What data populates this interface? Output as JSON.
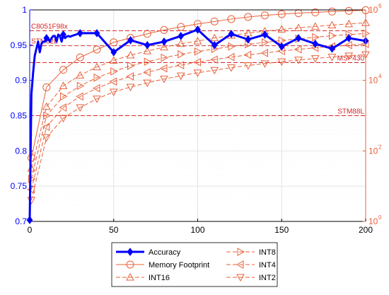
{
  "chart_data": {
    "type": "line",
    "x": [
      0,
      1,
      2,
      3,
      4,
      5,
      6,
      7,
      8,
      9,
      10,
      11,
      12,
      13,
      14,
      15,
      16,
      17,
      18,
      19,
      20,
      21,
      22,
      23,
      24,
      25,
      30,
      40,
      50,
      60,
      70,
      80,
      90,
      100,
      110,
      120,
      130,
      140,
      150,
      160,
      170,
      180,
      190,
      200
    ],
    "xlim": [
      0,
      200
    ],
    "xticks": [
      "0",
      "50",
      "100",
      "150",
      "200"
    ],
    "left_axis": {
      "ylim": [
        0.7,
        1.0
      ],
      "ticks": [
        "0.7",
        "0.75",
        "0.8",
        "0.85",
        "0.9",
        "0.95",
        "1"
      ],
      "color": "#0000ff"
    },
    "right_axis": {
      "scale": "log",
      "ylim": [
        1,
        1000000
      ],
      "ticks": [
        {
          "base": "10",
          "exp": "0"
        },
        {
          "base": "10",
          "exp": "2"
        },
        {
          "base": "10",
          "exp": "4"
        },
        {
          "base": "10",
          "exp": "6"
        }
      ],
      "color": "#e8613a"
    },
    "accuracy": {
      "name": "Accuracy",
      "color": "#0000ff",
      "values": [
        0.702,
        0.88,
        0.91,
        0.935,
        0.945,
        0.955,
        0.94,
        0.952,
        0.955,
        0.955,
        0.96,
        0.96,
        0.955,
        0.96,
        0.963,
        0.963,
        0.955,
        0.965,
        0.963,
        0.955,
        0.965,
        0.96,
        0.962,
        0.963,
        0.962,
        0.963,
        0.967,
        0.967,
        0.94,
        0.957,
        0.95,
        0.955,
        0.963,
        0.972,
        0.95,
        0.966,
        0.958,
        0.965,
        0.948,
        0.96,
        0.952,
        0.945,
        0.96,
        0.956
      ],
      "marked_x": [
        0,
        10,
        20,
        30,
        40,
        50,
        60,
        70,
        80,
        90,
        100,
        110,
        120,
        130,
        140,
        150,
        160,
        170,
        180,
        190,
        200
      ]
    },
    "memory_series": [
      {
        "name": "Memory Footprint",
        "marker": "circle",
        "dash": "solid",
        "x": [
          1,
          10,
          20,
          30,
          40,
          50,
          60,
          70,
          80,
          90,
          100,
          110,
          120,
          130,
          140,
          150,
          160,
          170,
          180,
          190,
          200
        ],
        "values": [
          64,
          6400,
          20000,
          45000,
          75000,
          120000,
          160000,
          210000,
          270000,
          330000,
          400000,
          470000,
          550000,
          630000,
          700000,
          760000,
          810000,
          850000,
          900000,
          940000,
          980000
        ]
      },
      {
        "name": "INT16",
        "marker": "triangle-up",
        "dash": "dashed",
        "x": [
          1,
          10,
          20,
          30,
          40,
          50,
          60,
          70,
          80,
          90,
          100,
          110,
          120,
          130,
          140,
          150,
          160,
          170,
          180,
          190,
          200
        ],
        "values": [
          32,
          1800,
          7000,
          14000,
          24000,
          37000,
          52000,
          68000,
          88000,
          110000,
          130000,
          160000,
          190000,
          220000,
          250000,
          280000,
          310000,
          340000,
          370000,
          400000,
          430000
        ]
      },
      {
        "name": "INT8",
        "marker": "triangle-right",
        "dash": "dashed",
        "x": [
          1,
          10,
          20,
          30,
          40,
          50,
          60,
          70,
          80,
          90,
          100,
          110,
          120,
          130,
          140,
          150,
          160,
          170,
          180,
          190,
          200
        ],
        "values": [
          16,
          1000,
          3500,
          7000,
          12000,
          18000,
          26000,
          34000,
          44000,
          55000,
          66000,
          78000,
          92000,
          106000,
          120000,
          136000,
          152000,
          168000,
          185000,
          200000,
          215000
        ]
      },
      {
        "name": "INT4",
        "marker": "triangle-left",
        "dash": "dashed",
        "x": [
          1,
          10,
          20,
          30,
          40,
          50,
          60,
          70,
          80,
          90,
          100,
          110,
          120,
          130,
          140,
          150,
          160,
          170,
          180,
          190,
          200
        ],
        "values": [
          8,
          480,
          1700,
          3500,
          6000,
          9300,
          13000,
          17000,
          22000,
          27000,
          33000,
          39000,
          46000,
          53000,
          60000,
          68000,
          76000,
          84000,
          92000,
          100000,
          108000
        ]
      },
      {
        "name": "INT2",
        "marker": "triangle-down",
        "dash": "dashed",
        "x": [
          1,
          10,
          20,
          30,
          40,
          50,
          60,
          70,
          80,
          90,
          100,
          110,
          120,
          130,
          140,
          150,
          160,
          170,
          180,
          190,
          200
        ],
        "values": [
          4,
          240,
          850,
          1700,
          3000,
          4700,
          6500,
          8500,
          11000,
          13500,
          16500,
          19500,
          23000,
          26500,
          30000,
          34000,
          38000,
          42000,
          46000,
          50000,
          54000
        ]
      }
    ],
    "reference_lines": [
      {
        "label": "C8051F98x",
        "value": 256000
      },
      {
        "label": "STM32L",
        "value": 96000
      },
      {
        "label": "MSP430",
        "value": 32000
      },
      {
        "label": "STM88L",
        "value": 1000
      }
    ],
    "series_color": "#e8613a",
    "reference_color": "#d62728",
    "grid": true,
    "legend_position": "bottom"
  }
}
